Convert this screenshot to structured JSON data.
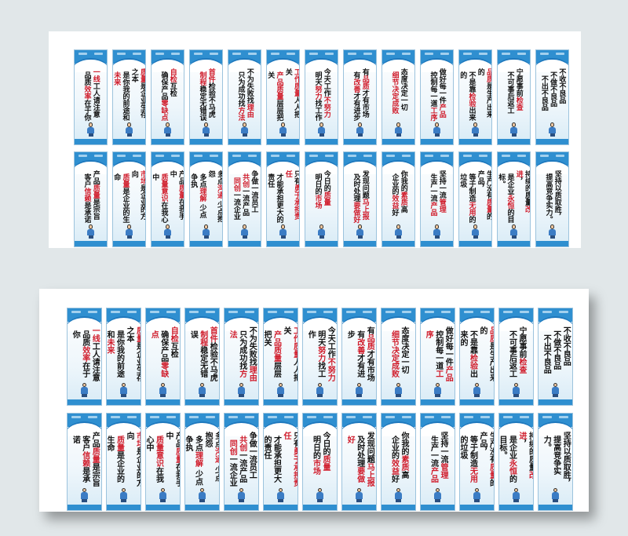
{
  "colors": {
    "poster_blue": "#2f8fd0",
    "highlight_red": "#d01c2b",
    "text": "#111111",
    "background": "#e1e7e9"
  },
  "posters": [
    {
      "columns": [
        "一线工人请注意",
        "品质效率在于你"
      ],
      "highlight": [
        "一线",
        "效率"
      ]
    },
    {
      "columns": [
        "质量是企业生存之本",
        "是你我的前途和未来"
      ],
      "highlight": [
        "质量",
        "未来"
      ]
    },
    {
      "columns": [
        "自检互检",
        "确保产品零缺点"
      ],
      "highlight": [
        "自检",
        "零缺点"
      ]
    },
    {
      "columns": [
        "首件检验不马虎",
        "制程稳定无错误"
      ],
      "highlight": [
        "首件",
        "制程"
      ]
    },
    {
      "columns": [
        "不为失败找理由",
        "只为成功找方法"
      ],
      "highlight": [
        "理由",
        "方法"
      ]
    },
    {
      "columns": [
        "工作质量人人把关",
        "产品质量层层把关"
      ],
      "highlight": [
        "工作质量",
        "产品质量"
      ]
    },
    {
      "columns": [
        "今天工作不努力",
        "明天努力找工作"
      ],
      "highlight": [
        "不努力",
        "努力"
      ]
    },
    {
      "columns": [
        "有品质才有市场",
        "有改善才有进步"
      ],
      "highlight": [
        "品质",
        "改善"
      ]
    },
    {
      "columns": [
        "态度决定一切",
        "细节决定成败"
      ],
      "highlight": [
        "细节决定成败"
      ]
    },
    {
      "columns": [
        "做好每一件产品",
        "控制每一道工序"
      ],
      "highlight": [
        "产品",
        "工序"
      ]
    },
    {
      "columns": [
        "品质是生产出来的",
        "不是靠检验出来的"
      ],
      "highlight": [
        "品质",
        "检验"
      ]
    },
    {
      "columns": [
        "宁愿事前检查",
        "不可事后返工"
      ],
      "highlight": [
        "检查"
      ]
    },
    {
      "columns": [
        "不收不良品",
        "不做不良品",
        "不出不良品"
      ],
      "highlight": []
    },
    {
      "columns": [
        "产品质量是宗旨",
        "客户信赖是承诺"
      ],
      "highlight": [
        "质量",
        "信赖"
      ]
    },
    {
      "columns": [
        "市场是企业的方向",
        "质量是企业的生命"
      ],
      "highlight": [
        "市场",
        "质量"
      ]
    },
    {
      "columns": [
        "产品质量在我手中",
        "质量意识在我心中"
      ],
      "highlight": [
        "质量",
        "意识"
      ]
    },
    {
      "columns": [
        "多点沟通 少点抱怨",
        "多点理解 少点争执"
      ],
      "highlight": [
        "沟通",
        "理解"
      ]
    },
    {
      "columns": [
        "争做一流员工",
        "共创一流产品",
        "同创一流企业"
      ],
      "highlight": [
        "共创",
        "同创"
      ]
    },
    {
      "columns": [
        "只有勇于承担责任",
        "才能承担更大的责任"
      ],
      "highlight": [
        "勇于承担责任"
      ]
    },
    {
      "columns": [
        "今日的质量",
        "明日的市场"
      ],
      "highlight": [
        "质量",
        "市场"
      ]
    },
    {
      "columns": [
        "发现问题马上报",
        "及时处理要做好"
      ],
      "highlight": [
        "马上报",
        "要做好"
      ]
    },
    {
      "columns": [
        "你我的素质高",
        "企业的效益好"
      ],
      "highlight": [
        "素质",
        "效益"
      ]
    },
    {
      "columns": [
        "坚持一流管理",
        "生产一流产品"
      ],
      "highlight": [
        "管理",
        "产品"
      ]
    },
    {
      "columns": [
        "生产没有质量的产品，",
        "等于制造无用的垃圾"
      ],
      "highlight": [
        "质量",
        "无用"
      ]
    },
    {
      "columns": [
        "持续的质量改进，",
        "是企业永恒的目标。"
      ],
      "highlight": [
        "改进",
        "永恒"
      ]
    },
    {
      "columns": [
        "坚持以质取胜，",
        "提高竞争实力。"
      ],
      "highlight": []
    }
  ]
}
